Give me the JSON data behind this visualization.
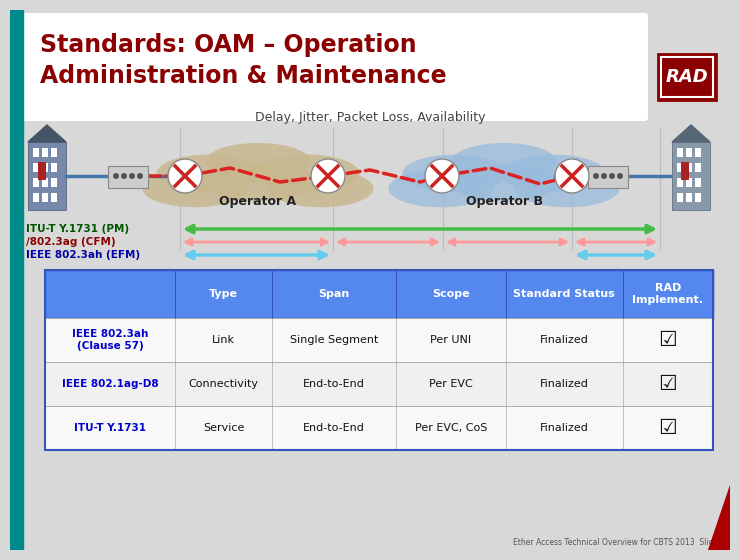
{
  "title_line1": "Standards: OAM – Operation",
  "title_line2": "Administration & Maintenance",
  "subtitle": "Delay, Jitter, Packet Loss, Availability",
  "title_color": "#8B0000",
  "teal_bar_color": "#008B8B",
  "header_bg": "#6699FF",
  "header_color": "#FFFFFF",
  "row1_label": "IEEE 802.3ah\n(Clause 57)",
  "row2_label": "IEEE 802.1ag-D8",
  "row3_label": "ITU-T Y.1731",
  "row1_label_color": "#0000CC",
  "row2_label_color": "#0000CC",
  "row3_label_color": "#0000CC",
  "table_data": [
    [
      "Link",
      "Single Segment",
      "Per UNI",
      "Finalized",
      "☑"
    ],
    [
      "Connectivity",
      "End-to-End",
      "Per EVC",
      "Finalized",
      "☑"
    ],
    [
      "Service",
      "End-to-End",
      "Per EVC, CoS",
      "Finalized",
      "☑"
    ]
  ],
  "operator_a_label": "Operator A",
  "operator_b_label": "Operator B",
  "itu_label": "ITU-T Y.1731 (PM)",
  "cfm_label": "/802.3ag (CFM)",
  "efm_label": "IEEE 802.3ah (EFM)",
  "arrow_green": "#44BB44",
  "arrow_pink": "#FF9999",
  "arrow_cyan": "#66CCEE",
  "footer_text": "Ether Access Technical Overview for CBTS 2013  Slide 8",
  "bg_color": "#D8D8D8"
}
